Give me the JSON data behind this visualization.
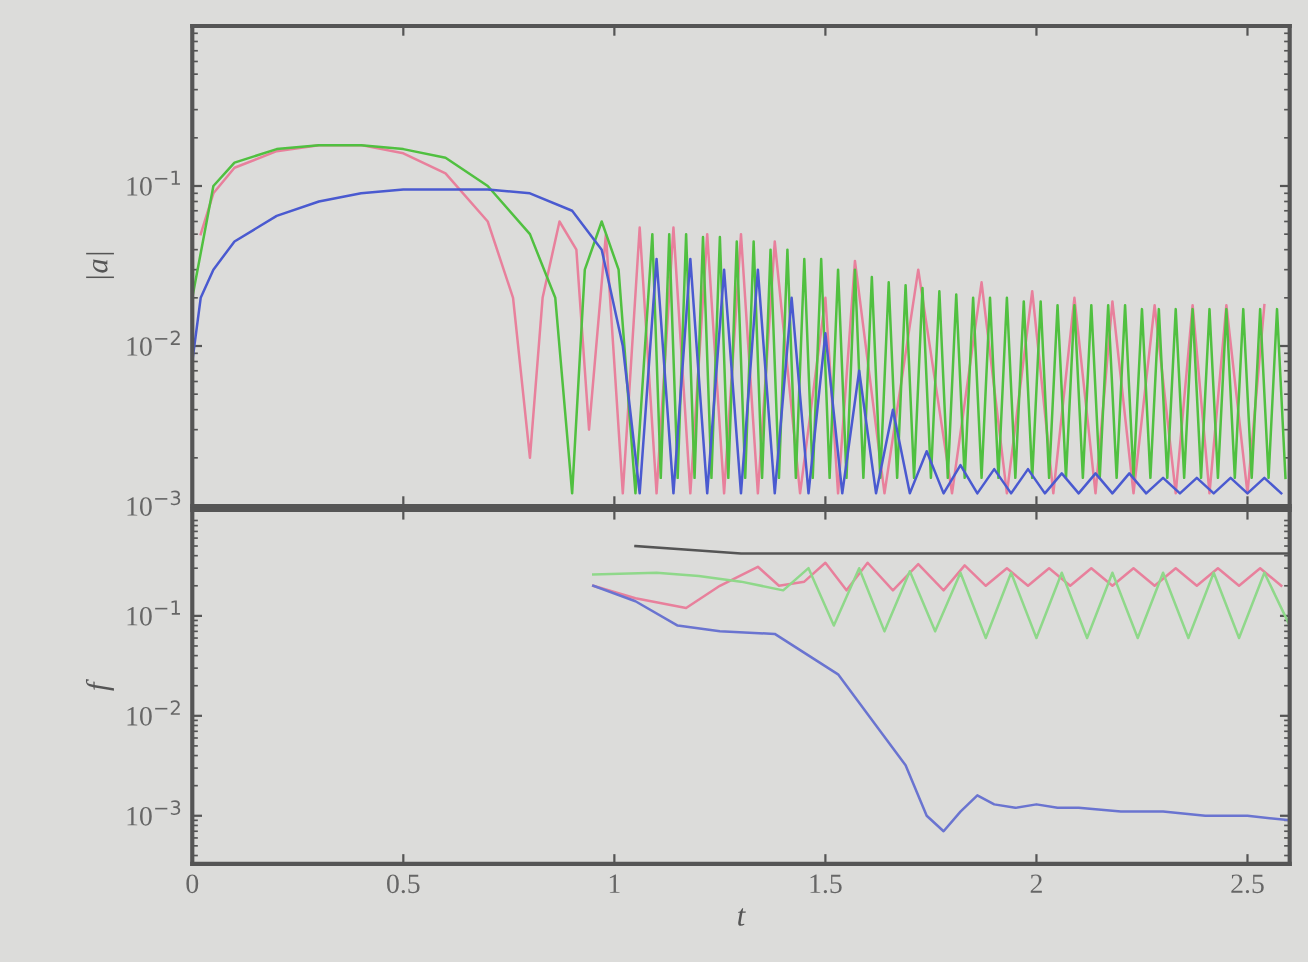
{
  "chart_data": [
    {
      "type": "line",
      "ylabel": "|a|",
      "log": true,
      "xlim": [
        0,
        2.6
      ],
      "xticks": [
        {
          "value": 0,
          "label": null
        },
        {
          "value": 0.5,
          "label": null
        },
        {
          "value": 1,
          "label": null
        },
        {
          "value": 1.5,
          "label": null
        },
        {
          "value": 2,
          "label": null
        },
        {
          "value": 2.5,
          "label": null
        }
      ],
      "ylim": [
        0.001,
        1
      ],
      "yticks": [
        {
          "value": 0.001,
          "label": "10$^{−3}$"
        },
        {
          "value": 0.01,
          "label": "10$^{−2}$"
        },
        {
          "value": 0.1,
          "label": "10$^{−1}$"
        }
      ],
      "tick_labels": "y",
      "series": [
        {
          "color": "#e8809c",
          "x": [
            0.02,
            0.05,
            0.1,
            0.2,
            0.3,
            0.4,
            0.5,
            0.6,
            0.7,
            0.76,
            0.8,
            0.83,
            0.87,
            0.91,
            0.94,
            0.98,
            1.02,
            1.06,
            1.1,
            1.14,
            1.18,
            1.22,
            1.26,
            1.3,
            1.34,
            1.38,
            1.44,
            1.5,
            1.53,
            1.57,
            1.64,
            1.72,
            1.8,
            1.87,
            1.93,
            1.99,
            2.04,
            2.09,
            2.14,
            2.18,
            2.23,
            2.28,
            2.33,
            2.37,
            2.41,
            2.45,
            2.5,
            2.54
          ],
          "values": [
            0.05,
            0.09,
            0.13,
            0.165,
            0.18,
            0.18,
            0.16,
            0.12,
            0.06,
            0.02,
            0.002,
            0.02,
            0.06,
            0.04,
            0.003,
            0.05,
            0.0012,
            0.055,
            0.0012,
            0.055,
            0.0012,
            0.05,
            0.0012,
            0.05,
            0.0012,
            0.045,
            0.0012,
            0.02,
            0.0012,
            0.034,
            0.0012,
            0.03,
            0.0012,
            0.025,
            0.0012,
            0.022,
            0.0012,
            0.02,
            0.0012,
            0.019,
            0.0012,
            0.018,
            0.0012,
            0.018,
            0.0012,
            0.018,
            0.0012,
            0.018
          ]
        },
        {
          "color": "#50c040",
          "x": [
            0,
            0.05,
            0.1,
            0.2,
            0.3,
            0.4,
            0.5,
            0.6,
            0.7,
            0.8,
            0.86,
            0.9,
            0.93,
            0.97,
            1.01,
            1.05,
            1.09,
            1.11,
            1.13,
            1.15,
            1.17,
            1.19,
            1.21,
            1.23,
            1.25,
            1.27,
            1.29,
            1.31,
            1.33,
            1.35,
            1.37,
            1.39,
            1.41,
            1.43,
            1.45,
            1.47,
            1.49,
            1.51,
            1.53,
            1.55,
            1.57,
            1.59,
            1.61,
            1.63,
            1.65,
            1.67,
            1.69,
            1.71,
            1.73,
            1.75,
            1.77,
            1.79,
            1.81,
            1.83,
            1.85,
            1.87,
            1.89,
            1.91,
            1.93,
            1.95,
            1.97,
            1.99,
            2.01,
            2.03,
            2.05,
            2.07,
            2.09,
            2.11,
            2.13,
            2.15,
            2.17,
            2.19,
            2.21,
            2.23,
            2.25,
            2.27,
            2.29,
            2.31,
            2.33,
            2.35,
            2.37,
            2.39,
            2.41,
            2.43,
            2.45,
            2.47,
            2.49,
            2.51,
            2.53,
            2.55,
            2.57,
            2.59
          ],
          "values": [
            0.02,
            0.1,
            0.14,
            0.17,
            0.18,
            0.18,
            0.17,
            0.15,
            0.1,
            0.05,
            0.02,
            0.0012,
            0.03,
            0.06,
            0.03,
            0.0012,
            0.05,
            0.0015,
            0.05,
            0.0015,
            0.05,
            0.0015,
            0.048,
            0.0015,
            0.048,
            0.0015,
            0.045,
            0.0015,
            0.045,
            0.0015,
            0.04,
            0.0015,
            0.04,
            0.0015,
            0.035,
            0.0015,
            0.035,
            0.0015,
            0.03,
            0.0015,
            0.03,
            0.0015,
            0.027,
            0.0015,
            0.025,
            0.0015,
            0.024,
            0.0015,
            0.023,
            0.0015,
            0.022,
            0.0015,
            0.021,
            0.0015,
            0.02,
            0.0015,
            0.02,
            0.0015,
            0.02,
            0.0015,
            0.019,
            0.0015,
            0.019,
            0.0015,
            0.018,
            0.0015,
            0.018,
            0.0015,
            0.018,
            0.0015,
            0.018,
            0.0015,
            0.018,
            0.0015,
            0.017,
            0.0015,
            0.017,
            0.0015,
            0.017,
            0.0015,
            0.017,
            0.0015,
            0.017,
            0.0015,
            0.017,
            0.0015,
            0.017,
            0.0015,
            0.017,
            0.0015,
            0.017,
            0.0015
          ]
        },
        {
          "color": "#4a5ad0",
          "x": [
            0,
            0.02,
            0.05,
            0.1,
            0.2,
            0.3,
            0.4,
            0.5,
            0.6,
            0.7,
            0.8,
            0.9,
            0.97,
            1.02,
            1.06,
            1.1,
            1.14,
            1.18,
            1.22,
            1.26,
            1.3,
            1.34,
            1.38,
            1.42,
            1.46,
            1.5,
            1.54,
            1.58,
            1.62,
            1.66,
            1.7,
            1.74,
            1.78,
            1.82,
            1.86,
            1.9,
            1.94,
            1.98,
            2.02,
            2.06,
            2.1,
            2.14,
            2.18,
            2.22,
            2.26,
            2.3,
            2.34,
            2.38,
            2.42,
            2.46,
            2.5,
            2.54,
            2.58
          ],
          "values": [
            0.008,
            0.02,
            0.03,
            0.045,
            0.065,
            0.08,
            0.09,
            0.095,
            0.095,
            0.095,
            0.09,
            0.07,
            0.04,
            0.01,
            0.0012,
            0.035,
            0.0012,
            0.035,
            0.0012,
            0.03,
            0.0012,
            0.03,
            0.0012,
            0.02,
            0.0012,
            0.012,
            0.0012,
            0.007,
            0.0012,
            0.004,
            0.0012,
            0.0022,
            0.0012,
            0.0018,
            0.0012,
            0.0017,
            0.0012,
            0.0017,
            0.0012,
            0.0016,
            0.0012,
            0.0016,
            0.0012,
            0.0016,
            0.0012,
            0.0015,
            0.0012,
            0.0015,
            0.0012,
            0.0015,
            0.0012,
            0.0015,
            0.0012
          ]
        }
      ]
    },
    {
      "type": "line",
      "xlabel": "t",
      "ylabel": "f",
      "log": true,
      "xlim": [
        0,
        2.6
      ],
      "xticks": [
        0,
        0.5,
        1,
        1.5,
        2,
        2.5
      ],
      "ylim": [
        0.00033,
        1.15
      ],
      "yticks": [
        {
          "value": 0.001,
          "label": "10$^{−3}$"
        },
        {
          "value": 0.01,
          "label": "10$^{−2}$"
        },
        {
          "value": 0.1,
          "label": "10$^{−1}$"
        }
      ],
      "series": [
        {
          "color": "#555555",
          "x": [
            1.05,
            1.2,
            1.3,
            2.6
          ],
          "values": [
            0.5,
            0.45,
            0.42,
            0.42
          ]
        },
        {
          "color": "#e8809c",
          "x": [
            0.95,
            1.05,
            1.17,
            1.25,
            1.34,
            1.39,
            1.45,
            1.5,
            1.55,
            1.6,
            1.66,
            1.72,
            1.78,
            1.83,
            1.88,
            1.93,
            1.98,
            2.03,
            2.08,
            2.13,
            2.18,
            2.23,
            2.28,
            2.33,
            2.38,
            2.43,
            2.48,
            2.53,
            2.58
          ],
          "values": [
            0.2,
            0.15,
            0.12,
            0.2,
            0.31,
            0.2,
            0.22,
            0.34,
            0.18,
            0.34,
            0.18,
            0.33,
            0.18,
            0.32,
            0.2,
            0.3,
            0.2,
            0.3,
            0.2,
            0.3,
            0.2,
            0.3,
            0.2,
            0.3,
            0.2,
            0.3,
            0.2,
            0.3,
            0.2
          ]
        },
        {
          "color": "#8fd88a",
          "x": [
            0.95,
            1.1,
            1.2,
            1.3,
            1.4,
            1.46,
            1.52,
            1.58,
            1.64,
            1.7,
            1.76,
            1.82,
            1.88,
            1.94,
            2.0,
            2.06,
            2.12,
            2.18,
            2.24,
            2.3,
            2.36,
            2.42,
            2.48,
            2.54,
            2.6
          ],
          "values": [
            0.26,
            0.27,
            0.25,
            0.22,
            0.18,
            0.3,
            0.08,
            0.3,
            0.07,
            0.28,
            0.07,
            0.27,
            0.06,
            0.27,
            0.06,
            0.27,
            0.06,
            0.27,
            0.06,
            0.27,
            0.06,
            0.27,
            0.06,
            0.27,
            0.08
          ]
        },
        {
          "color": "#6a74d0",
          "x": [
            0.95,
            1.05,
            1.15,
            1.25,
            1.38,
            1.53,
            1.62,
            1.69,
            1.74,
            1.78,
            1.82,
            1.86,
            1.9,
            1.95,
            2.0,
            2.05,
            2.1,
            2.2,
            2.3,
            2.4,
            2.5,
            2.6
          ],
          "values": [
            0.2,
            0.14,
            0.08,
            0.07,
            0.066,
            0.026,
            0.008,
            0.0032,
            0.001,
            0.0007,
            0.0011,
            0.0016,
            0.0013,
            0.0012,
            0.0013,
            0.0012,
            0.0012,
            0.0011,
            0.0011,
            0.001,
            0.001,
            0.0009
          ]
        }
      ]
    }
  ]
}
